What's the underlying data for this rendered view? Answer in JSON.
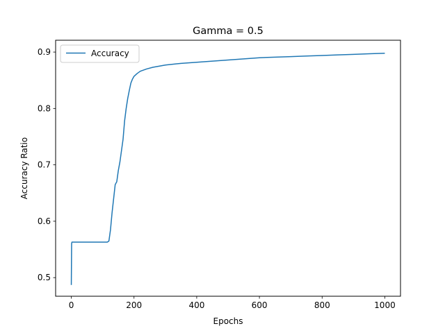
{
  "chart_data": {
    "type": "line",
    "title": "Gamma = 0.5",
    "xlabel": "Epochs",
    "ylabel": "Accuracy Ratio",
    "xlim": [
      -50,
      1050
    ],
    "ylim": [
      0.467,
      0.921
    ],
    "xticks": [
      0,
      200,
      400,
      600,
      800,
      1000
    ],
    "xtick_labels": [
      "0",
      "200",
      "400",
      "600",
      "800",
      "1000"
    ],
    "yticks": [
      0.5,
      0.6,
      0.7,
      0.8,
      0.9
    ],
    "ytick_labels": [
      "0.5",
      "0.6",
      "0.7",
      "0.8",
      "0.9"
    ],
    "grid": false,
    "legend": {
      "position": "top-left",
      "entries": [
        "Accuracy"
      ]
    },
    "series": [
      {
        "name": "Accuracy",
        "color": "#1f77b4",
        "points": [
          [
            0,
            0.487
          ],
          [
            1,
            0.56
          ],
          [
            2,
            0.563
          ],
          [
            5,
            0.563
          ],
          [
            50,
            0.563
          ],
          [
            100,
            0.563
          ],
          [
            115,
            0.563
          ],
          [
            120,
            0.565
          ],
          [
            125,
            0.585
          ],
          [
            130,
            0.615
          ],
          [
            135,
            0.64
          ],
          [
            140,
            0.665
          ],
          [
            145,
            0.67
          ],
          [
            150,
            0.69
          ],
          [
            155,
            0.705
          ],
          [
            160,
            0.725
          ],
          [
            165,
            0.745
          ],
          [
            170,
            0.778
          ],
          [
            175,
            0.8
          ],
          [
            180,
            0.818
          ],
          [
            185,
            0.832
          ],
          [
            190,
            0.845
          ],
          [
            195,
            0.852
          ],
          [
            200,
            0.857
          ],
          [
            210,
            0.862
          ],
          [
            220,
            0.866
          ],
          [
            240,
            0.87
          ],
          [
            260,
            0.873
          ],
          [
            280,
            0.875
          ],
          [
            300,
            0.877
          ],
          [
            350,
            0.88
          ],
          [
            400,
            0.882
          ],
          [
            450,
            0.884
          ],
          [
            500,
            0.886
          ],
          [
            550,
            0.888
          ],
          [
            600,
            0.89
          ],
          [
            650,
            0.891
          ],
          [
            700,
            0.892
          ],
          [
            750,
            0.893
          ],
          [
            800,
            0.894
          ],
          [
            850,
            0.895
          ],
          [
            900,
            0.896
          ],
          [
            950,
            0.897
          ],
          [
            1000,
            0.898
          ]
        ]
      }
    ]
  }
}
